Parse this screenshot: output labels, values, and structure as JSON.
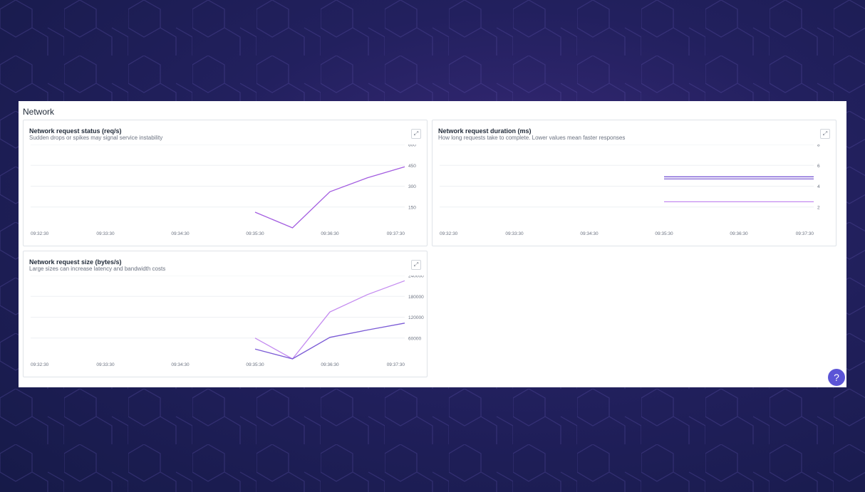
{
  "section": {
    "title": "Network"
  },
  "help": {
    "label": "?"
  },
  "icons": {
    "expand": "expand-icon",
    "help": "help-icon"
  },
  "colors": {
    "line_violet": "#b57bee",
    "line_indigo": "#7c5cd6"
  },
  "chart_data": [
    {
      "type": "line",
      "title": "Network request status (req/s)",
      "subtitle": "Sudden drops or spikes may signal service instability",
      "x_ticks": [
        "09:32:30",
        "09:33:30",
        "09:34:30",
        "09:35:30",
        "09:36:30",
        "09:37:30"
      ],
      "y_ticks": [
        "600",
        "450",
        "300",
        "150"
      ],
      "ylim": [
        0,
        600
      ],
      "x": [
        "09:35:30",
        "09:36:00",
        "09:36:30",
        "09:37:00",
        "09:37:30"
      ],
      "series": [
        {
          "color": "#a35de0",
          "values": [
            113,
            0,
            260,
            360,
            440
          ]
        }
      ]
    },
    {
      "type": "line",
      "title": "Network request duration (ms)",
      "subtitle": "How long requests take to complete. Lower values mean faster responses",
      "x_ticks": [
        "09:32:30",
        "09:33:30",
        "09:34:30",
        "09:35:30",
        "09:36:30",
        "09:37:30"
      ],
      "y_ticks": [
        "8",
        "6",
        "4",
        "2"
      ],
      "ylim": [
        0,
        8
      ],
      "x": [
        "09:35:30",
        "09:37:30"
      ],
      "series": [
        {
          "color": "#7c5cd6",
          "values": [
            4.9,
            4.9
          ]
        },
        {
          "color": "#8a6bd8",
          "values": [
            4.7,
            4.7
          ]
        },
        {
          "color": "#c48bf0",
          "values": [
            2.5,
            2.5
          ]
        }
      ]
    },
    {
      "type": "line",
      "title": "Network request size (bytes/s)",
      "subtitle": "Large sizes can increase latency and bandwidth costs",
      "x_ticks": [
        "09:32:30",
        "09:33:30",
        "09:34:30",
        "09:35:30",
        "09:36:30",
        "09:37:30"
      ],
      "y_ticks": [
        "240000",
        "180000",
        "120000",
        "60000"
      ],
      "ylim": [
        0,
        240000
      ],
      "x": [
        "09:35:30",
        "09:36:00",
        "09:36:30",
        "09:37:00",
        "09:37:30"
      ],
      "series": [
        {
          "color": "#c48bf0",
          "values": [
            60000,
            0,
            135000,
            185000,
            225000
          ]
        },
        {
          "color": "#7c5cd6",
          "values": [
            28000,
            0,
            62000,
            83000,
            103000
          ]
        }
      ]
    }
  ]
}
